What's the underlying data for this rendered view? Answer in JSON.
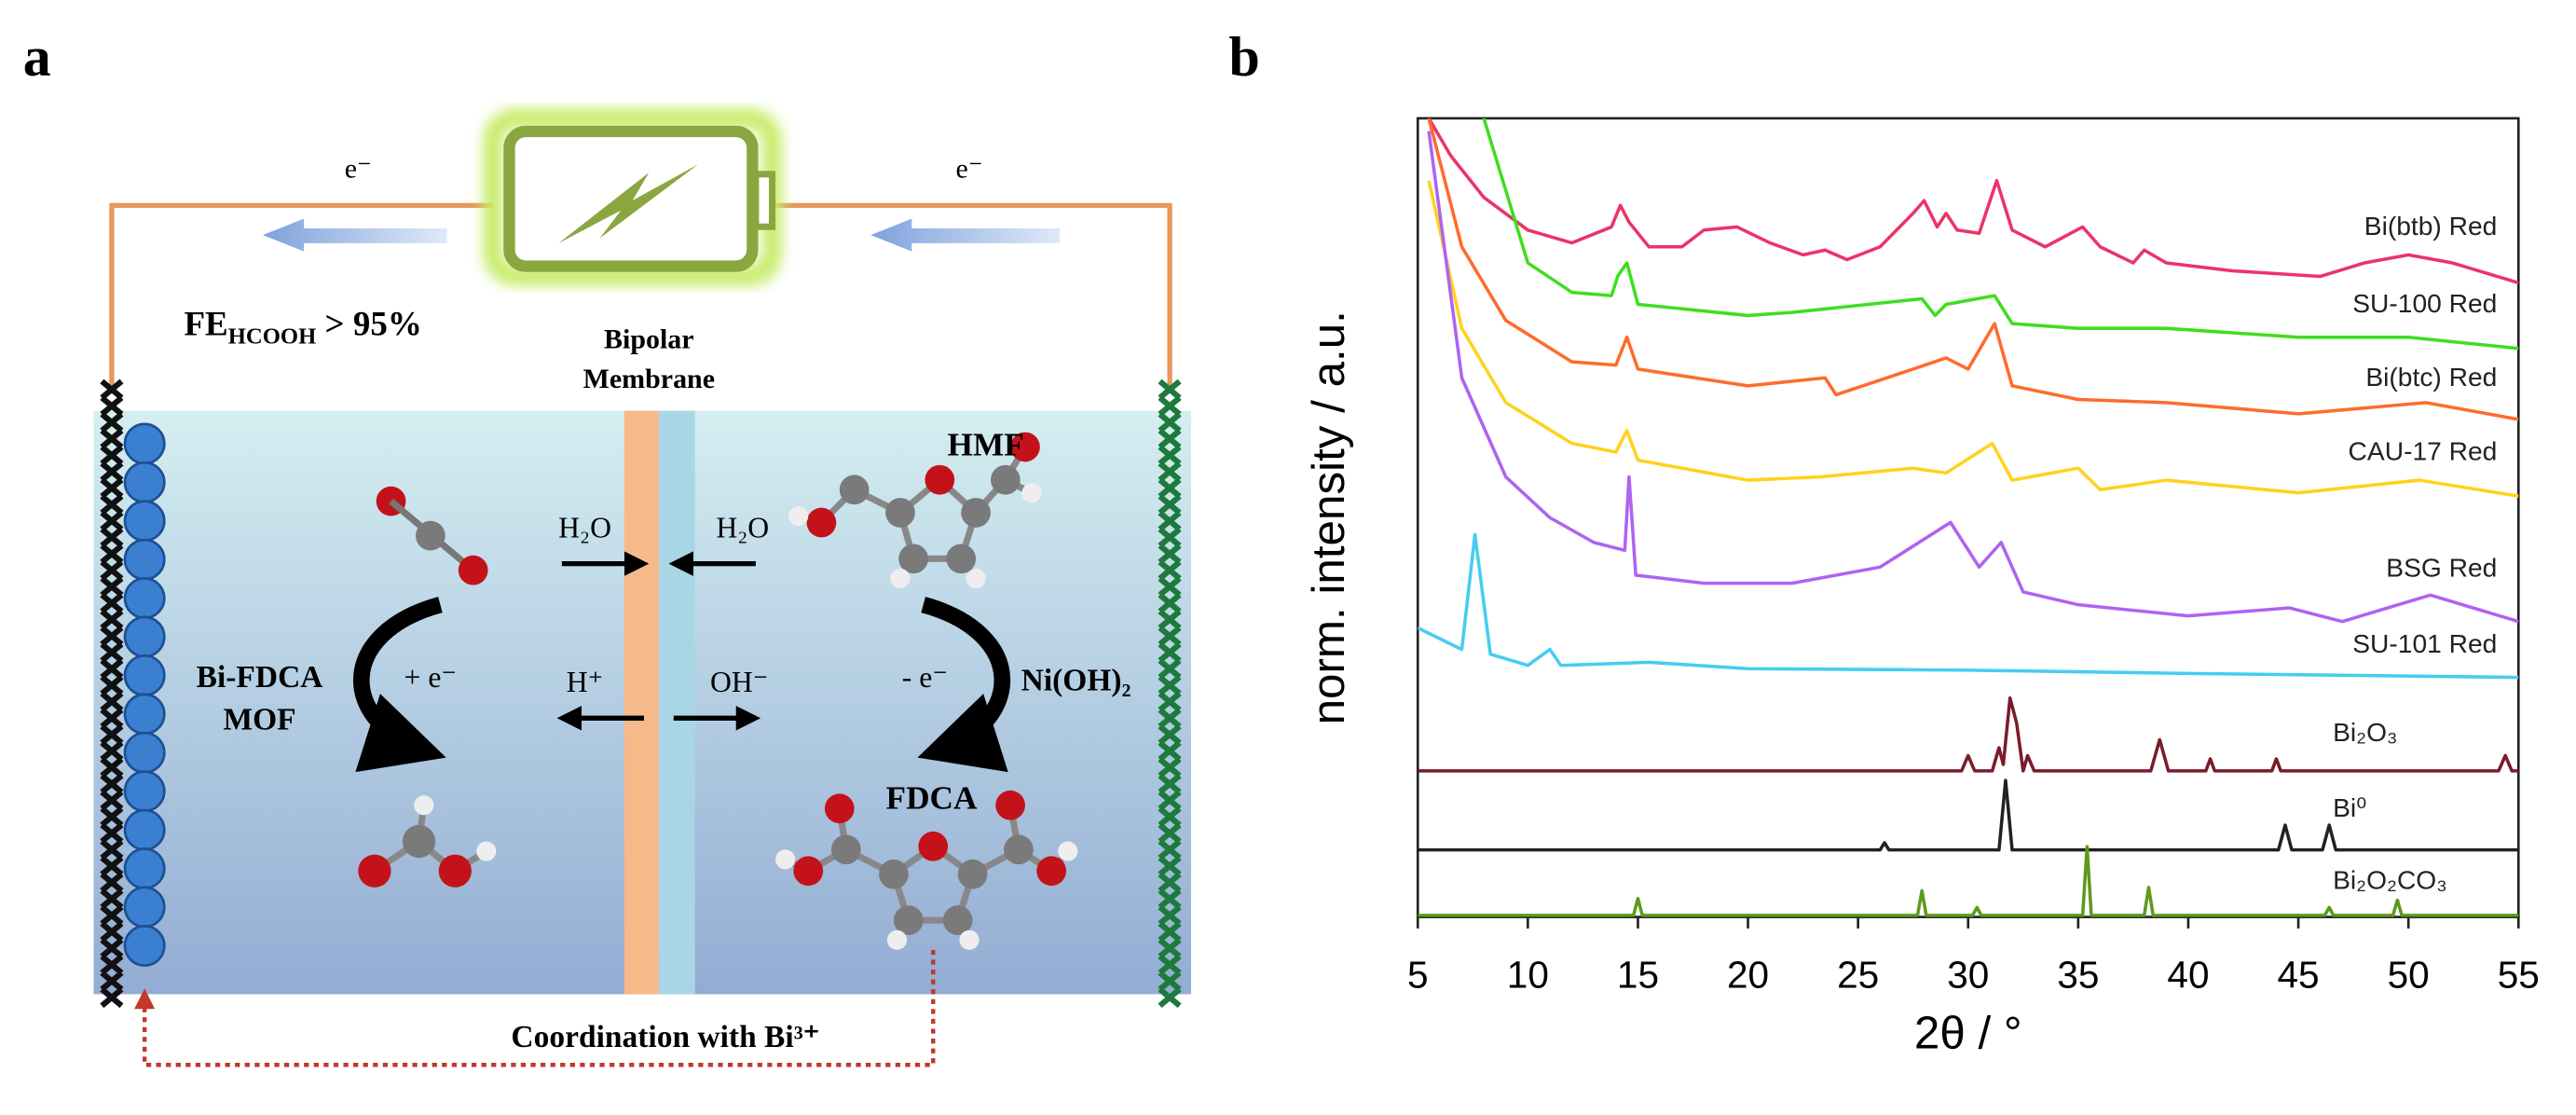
{
  "panel_a": {
    "letter": "a",
    "electron_left": "e⁻",
    "electron_right": "e⁻",
    "fe": {
      "main": "FE",
      "sub": "HCOOH",
      "rest": " > 95%"
    },
    "membrane": [
      "Bipolar",
      "Membrane"
    ],
    "hmf": "HMF",
    "water_left": "H₂O",
    "water_right": "H₂O",
    "proton": "H⁺",
    "hydroxide": "OH⁻",
    "reduction": "+ e⁻",
    "oxidation": "- e⁻",
    "cathode": [
      "Bi-FDCA",
      "MOF"
    ],
    "anode": "Ni(OH)₂",
    "fdca": "FDCA",
    "coordination": "Coordination with Bi³⁺"
  },
  "chart_data": {
    "type": "line",
    "letter": "b",
    "xlabel": "2θ / °",
    "ylabel": "norm. intensity / a.u.",
    "xlim": [
      5,
      55
    ],
    "xticks": [
      5,
      10,
      15,
      20,
      25,
      30,
      35,
      40,
      45,
      50,
      55
    ],
    "ylim": [
      0,
      100
    ],
    "series": [
      {
        "name": "Bi(btb) Red",
        "color": "#ea3468",
        "x": [
          5.5,
          6.5,
          8,
          10,
          12,
          13.8,
          14.2,
          14.6,
          15.5,
          17,
          18,
          19.5,
          21,
          22.5,
          23.5,
          24.5,
          26,
          27.5,
          28,
          28.6,
          29,
          29.5,
          30.5,
          31.3,
          32,
          33.5,
          35.2,
          36,
          37.5,
          38,
          39,
          42,
          46,
          48,
          50,
          52,
          55
        ],
        "values": [
          100,
          95.3,
          90.1,
          86.0,
          84.4,
          86.4,
          89.1,
          87.0,
          83.9,
          83.9,
          86.0,
          86.4,
          84.4,
          82.9,
          83.5,
          82.3,
          83.9,
          88.1,
          89.7,
          86.4,
          88.1,
          86.0,
          85.6,
          92.2,
          86.0,
          83.9,
          86.4,
          83.9,
          81.9,
          83.5,
          81.9,
          80.9,
          80.2,
          81.9,
          82.9,
          81.9,
          79.4
        ]
      },
      {
        "name": "SU-100 Red",
        "color": "#3ede1e",
        "x": [
          8,
          10,
          12,
          13.8,
          14.1,
          14.5,
          15,
          20,
          22,
          27.9,
          28.5,
          29,
          31.2,
          32,
          35,
          39,
          45,
          50,
          55
        ],
        "values": [
          100,
          81.9,
          78.2,
          77.8,
          80.3,
          81.9,
          76.7,
          75.3,
          75.7,
          77.4,
          75.3,
          76.7,
          77.8,
          74.3,
          73.7,
          73.7,
          72.6,
          72.6,
          71.2
        ]
      },
      {
        "name": "Bi(btc) Red",
        "color": "#ff6b2c",
        "x": [
          5.5,
          7,
          9,
          12,
          14,
          14.5,
          15,
          20,
          23.5,
          24,
          27.5,
          29,
          30,
          31.2,
          32,
          35,
          39,
          45,
          50.8,
          55
        ],
        "values": [
          100,
          83.9,
          74.7,
          69.5,
          69.1,
          72.6,
          68.6,
          66.5,
          67.5,
          65.4,
          68.6,
          70.0,
          68.6,
          74.3,
          66.5,
          64.8,
          64.4,
          63.0,
          64.4,
          62.3
        ]
      },
      {
        "name": "CAU-17 Red",
        "color": "#ffd21c",
        "x": [
          5.5,
          7,
          9,
          12,
          14,
          14.5,
          15,
          20,
          23.3,
          27.5,
          29,
          31.1,
          32,
          35,
          36,
          39,
          45,
          50.5,
          55
        ],
        "values": [
          92.2,
          73.7,
          64.4,
          59.3,
          58.2,
          60.9,
          57.2,
          54.7,
          55.1,
          56.2,
          55.6,
          59.3,
          54.7,
          56.2,
          53.5,
          54.7,
          53.1,
          54.7,
          52.7
        ]
      },
      {
        "name": "BSG Red",
        "color": "#b062f0",
        "x": [
          5.5,
          7,
          9,
          11,
          13,
          14.4,
          14.6,
          14.9,
          18,
          22,
          26,
          29.2,
          30.5,
          31.5,
          32.5,
          35,
          40,
          44.6,
          47,
          51,
          55
        ],
        "values": [
          98.4,
          67.5,
          55.1,
          50.0,
          46.9,
          45.9,
          55.1,
          42.8,
          41.8,
          41.8,
          43.8,
          49.4,
          43.8,
          46.9,
          40.7,
          39.1,
          37.7,
          38.7,
          37.0,
          40.3,
          37.0
        ]
      },
      {
        "name": "SU-101 Red",
        "color": "#46cdef",
        "x": [
          5,
          7,
          7.6,
          8.3,
          10,
          11,
          11.5,
          15.5,
          20,
          30,
          40,
          55
        ],
        "values": [
          36.2,
          33.5,
          47.9,
          32.9,
          31.5,
          33.5,
          31.5,
          31.9,
          31.1,
          30.9,
          30.5,
          30.0
        ]
      },
      {
        "name": "Bi₂O₃",
        "color": "#7a1b2c",
        "x": [
          5,
          29.7,
          30,
          30.3,
          31.1,
          31.4,
          31.6,
          31.9,
          32.2,
          32.5,
          32.7,
          33,
          38.3,
          38.7,
          39.1,
          40.8,
          41,
          41.2,
          43.8,
          44,
          44.2,
          54.1,
          54.4,
          54.7,
          55
        ],
        "values": [
          18.3,
          18.3,
          20.2,
          18.3,
          18.3,
          21.2,
          19.1,
          27.4,
          24.3,
          18.3,
          20.2,
          18.3,
          18.3,
          22.2,
          18.3,
          18.3,
          19.8,
          18.3,
          18.3,
          19.8,
          18.3,
          18.3,
          20.2,
          18.3,
          18.3
        ]
      },
      {
        "name": "Bi⁰",
        "color": "#222222",
        "x": [
          5,
          26,
          26.2,
          26.4,
          31.4,
          31.7,
          32,
          44.1,
          44.4,
          44.7,
          46.1,
          46.4,
          46.7,
          55
        ],
        "values": [
          8.4,
          8.4,
          9.3,
          8.4,
          8.4,
          17.1,
          8.4,
          8.4,
          11.5,
          8.4,
          8.4,
          11.5,
          8.4,
          8.4
        ]
      },
      {
        "name": "Bi₂O₂CO₃",
        "color": "#5b9b1c",
        "x": [
          5,
          14.8,
          15,
          15.2,
          27.7,
          27.9,
          28.1,
          30.2,
          30.4,
          30.6,
          35.2,
          35.4,
          35.6,
          38,
          38.2,
          38.4,
          46.2,
          46.4,
          46.6,
          49.3,
          49.5,
          49.7,
          55
        ],
        "values": [
          0.2,
          0.2,
          2.3,
          0.2,
          0.2,
          3.3,
          0.2,
          0.2,
          1.2,
          0.2,
          0.2,
          8.8,
          0.2,
          0.2,
          3.7,
          0.2,
          0.2,
          1.2,
          0.2,
          0.2,
          2.1,
          0.2,
          0.2
        ]
      }
    ]
  }
}
